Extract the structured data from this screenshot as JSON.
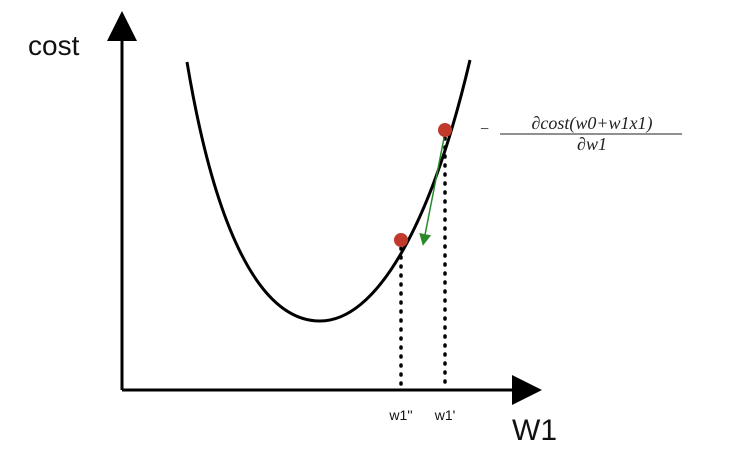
{
  "y_axis_label": "cost",
  "x_axis_label": "W1",
  "point_labels": [
    "w1''",
    "w1'"
  ],
  "formula": {
    "sign": "−",
    "numerator": "∂cost(w0+w1x1)",
    "denominator": "∂w1"
  }
}
